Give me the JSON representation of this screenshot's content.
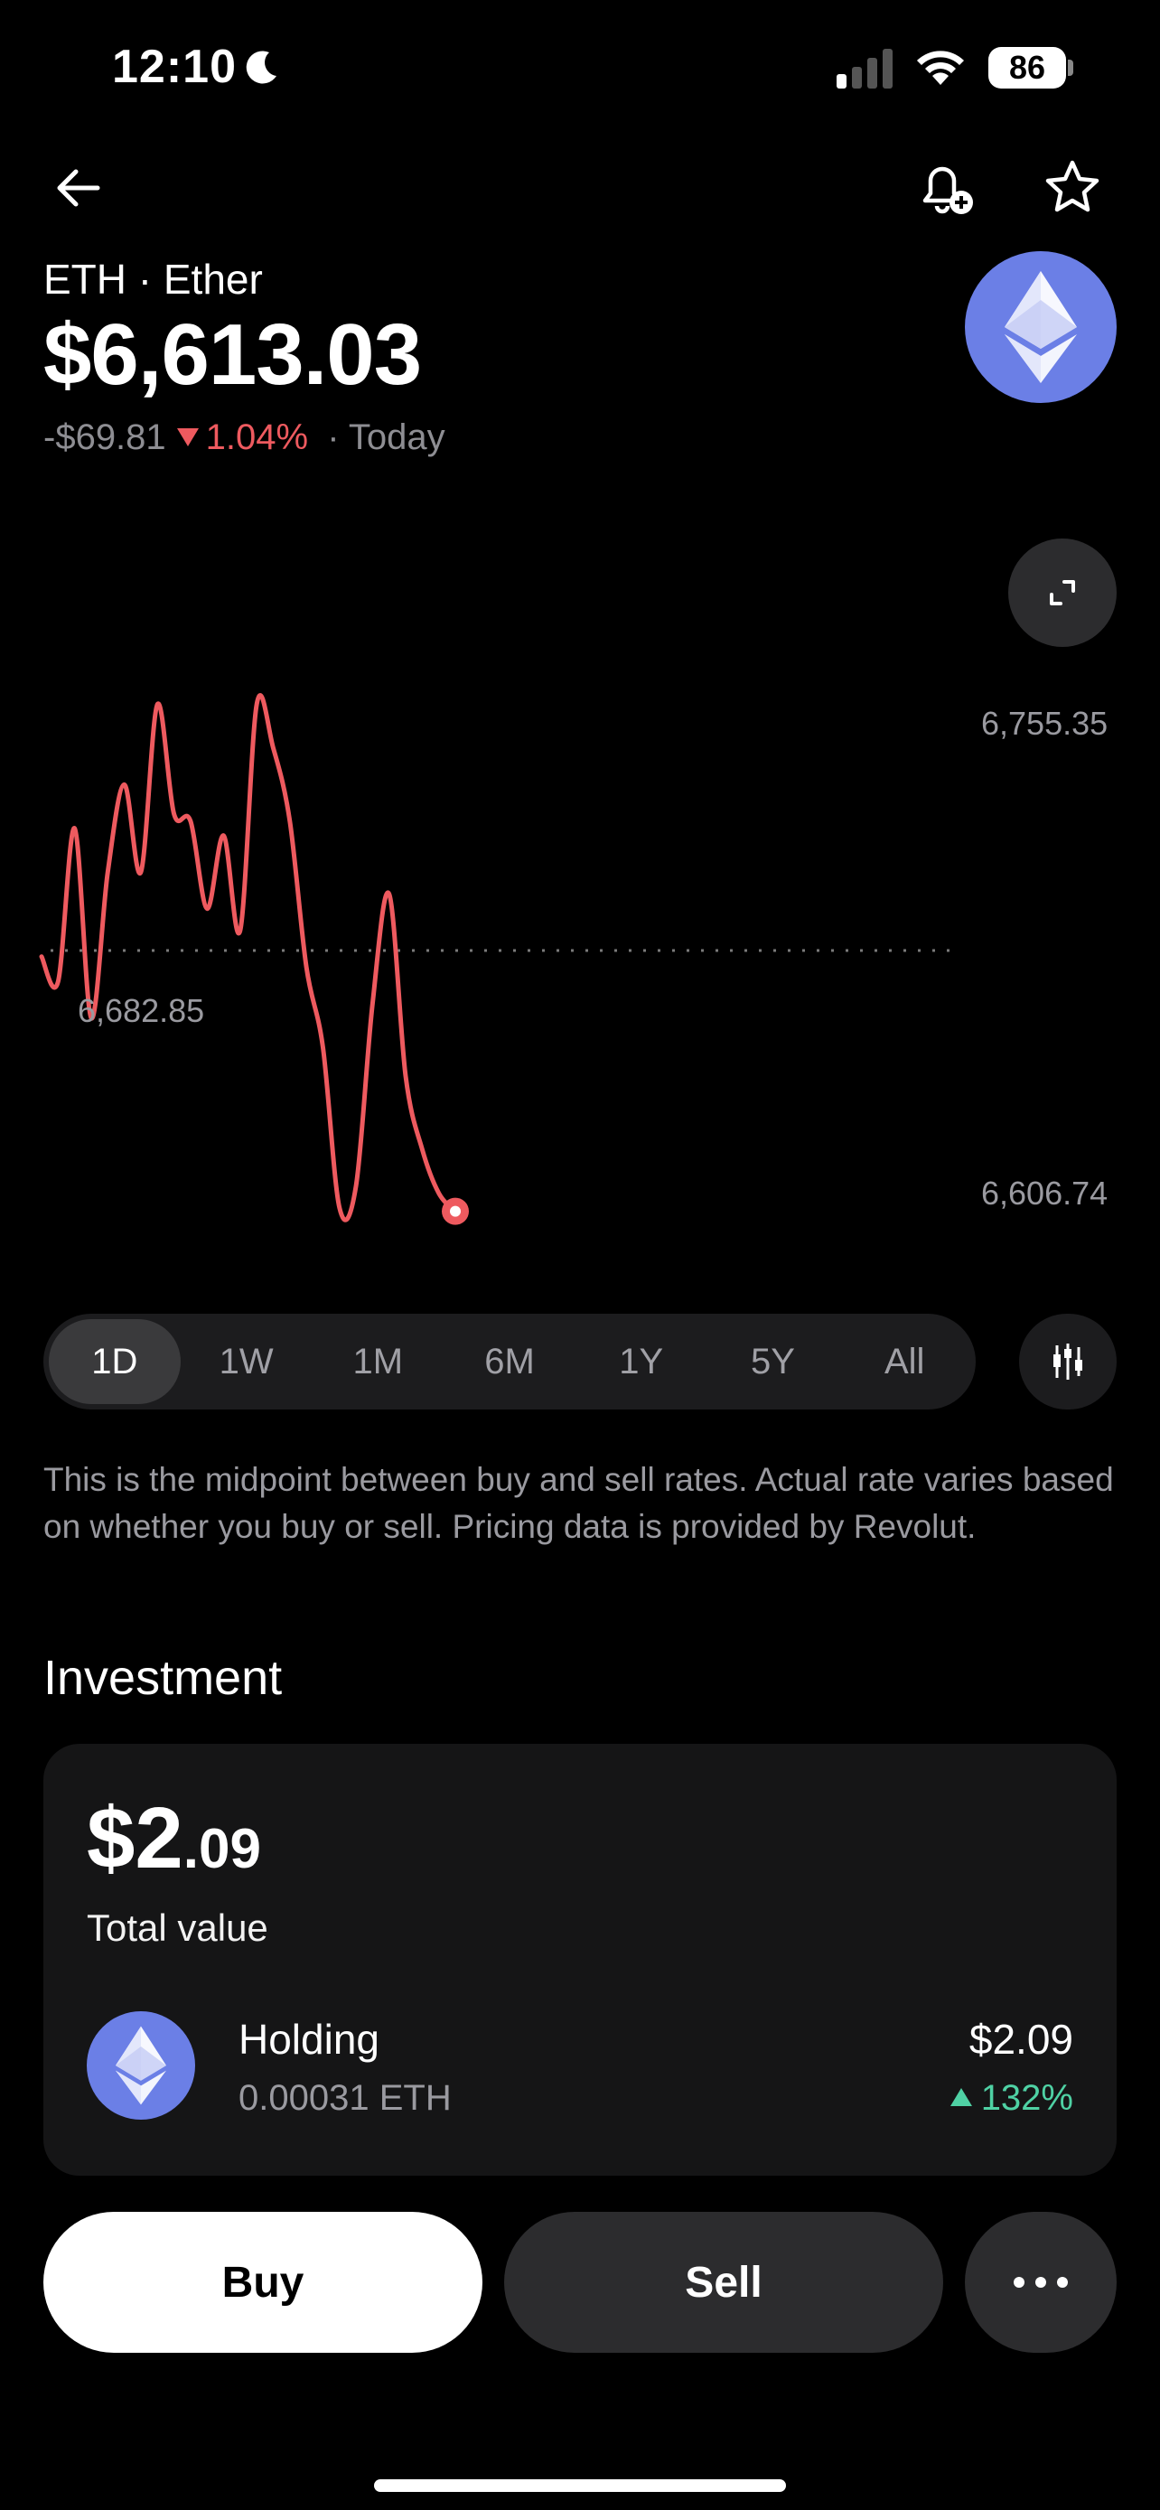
{
  "status_bar": {
    "time": "12:10",
    "battery": "86"
  },
  "header": {
    "asset_name": "ETH · Ether",
    "price": "$6,613.03",
    "change_amount": "-$69.81",
    "change_percent": "1.04%",
    "period_label": "· Today"
  },
  "chart_data": {
    "type": "line",
    "labels": {
      "high": "6,755.35",
      "low": "6,606.74",
      "open": "6,682.85"
    },
    "color": "#ee5a5f",
    "ylim": [
      6606.74,
      6755.35
    ],
    "x": [
      0,
      2,
      4,
      6,
      8,
      10,
      12,
      14,
      16,
      18,
      20,
      22,
      24,
      26,
      28,
      30,
      32,
      34,
      36,
      38,
      40,
      42,
      44,
      46,
      48,
      50
    ],
    "values": [
      6682.85,
      6676,
      6718,
      6666,
      6706,
      6730,
      6706,
      6752,
      6722,
      6720,
      6696,
      6716,
      6690,
      6752,
      6740,
      6720,
      6680,
      6658,
      6614,
      6620,
      6670,
      6700,
      6650,
      6630,
      6618,
      6613.03
    ]
  },
  "periods": {
    "items": [
      "1D",
      "1W",
      "1M",
      "6M",
      "1Y",
      "5Y",
      "All"
    ],
    "active": "1D"
  },
  "disclaimer": "This is the midpoint between buy and sell rates. Actual rate varies based on whether you buy or sell. Pricing data is provided by Revolut.",
  "investment": {
    "section_title": "Investment",
    "total_main": "$2",
    "total_cents": ".09",
    "total_label": "Total value",
    "holding_name": "Holding",
    "holding_amount": "0.00031 ETH",
    "holding_value": "$2.09",
    "holding_change": "132%"
  },
  "actions": {
    "buy": "Buy",
    "sell": "Sell"
  },
  "colors": {
    "accent_negative": "#ee5a5f",
    "accent_positive": "#4fd1a4",
    "eth_brand": "#6b7fe6"
  }
}
